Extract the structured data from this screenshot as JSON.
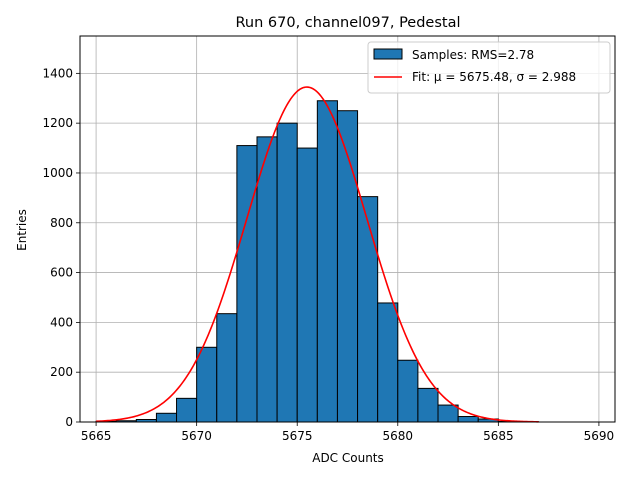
{
  "chart_data": {
    "type": "bar",
    "title": "Run 670, channel097, Pedestal",
    "xlabel": "ADC Counts",
    "ylabel": "Entries",
    "xlim": [
      5664.2,
      5690.8
    ],
    "ylim": [
      0,
      1550
    ],
    "xticks": [
      5665,
      5670,
      5675,
      5680,
      5685,
      5690
    ],
    "yticks": [
      0,
      200,
      400,
      600,
      800,
      1000,
      1200,
      1400
    ],
    "grid": true,
    "legend_position": "top-right",
    "bin_width": 1,
    "histogram": {
      "name": "Samples: RMS=2.78",
      "color": "#1f77b4",
      "edgecolor": "#000000",
      "bin_starts": [
        5665,
        5666,
        5667,
        5668,
        5669,
        5670,
        5671,
        5672,
        5673,
        5674,
        5675,
        5676,
        5677,
        5678,
        5679,
        5680,
        5681,
        5682,
        5683,
        5684,
        5685,
        5686
      ],
      "values": [
        3,
        5,
        10,
        35,
        95,
        300,
        435,
        1110,
        1145,
        1200,
        1100,
        1290,
        1250,
        905,
        478,
        248,
        135,
        68,
        22,
        12,
        2,
        1
      ]
    },
    "fit": {
      "name": "Fit: μ = 5675.48, σ = 2.988",
      "color": "#ff0000",
      "mu": 5675.48,
      "sigma": 2.988,
      "amplitude": 1345,
      "x_range": [
        5665,
        5687
      ]
    }
  }
}
